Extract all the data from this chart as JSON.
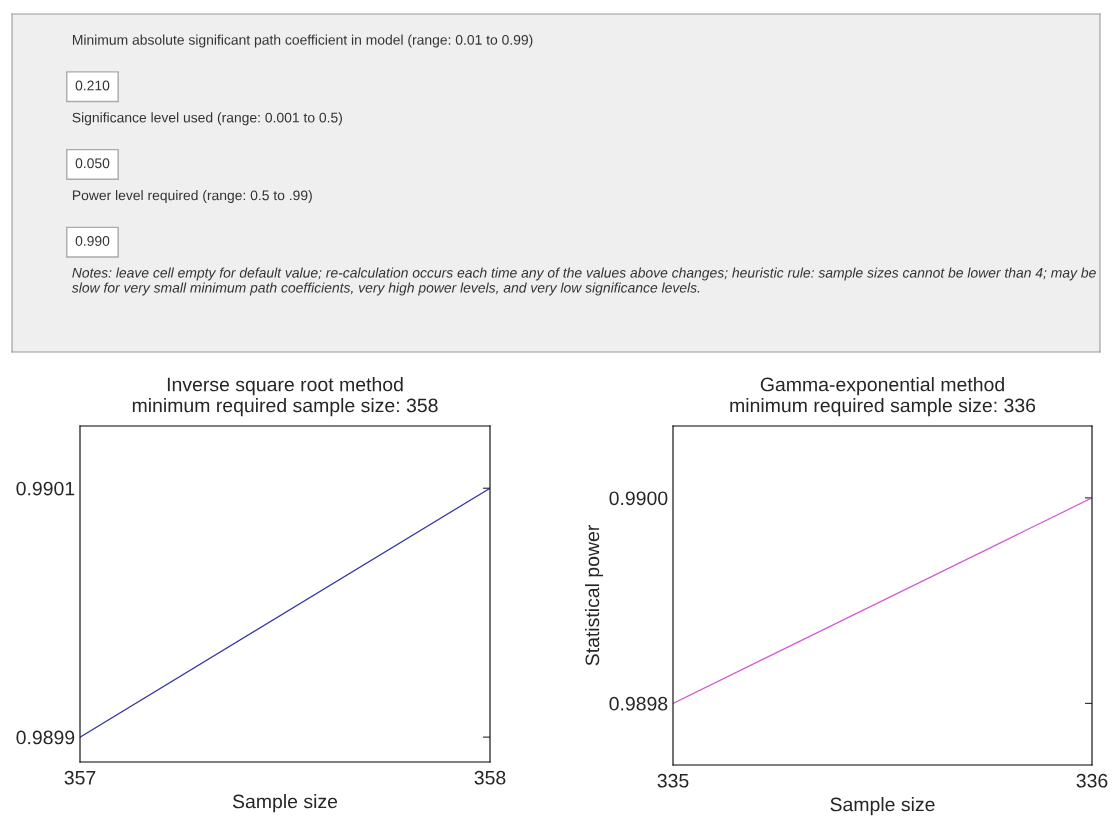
{
  "chart_data": [
    {
      "type": "other",
      "annotations": [
        "Minimum absolute significant path coefficient in model (range: 0.01 to 0.99)",
        "0.210",
        "Significance level used (range: 0.001 to 0.5)",
        "0.050",
        "Power level required (range: 0.5 to .99)",
        "0.990",
        "Notes: leave cell empty for default value; re-calculation occurs each time any of the values above changes; heuristic rule: sample sizes cannot be lower than 4; may be slow for very small minimum path coefficients, very high power levels, and very low significance levels."
      ]
    },
    {
      "type": "line",
      "title": "Inverse square root method\nminimum required sample size: 358",
      "xlabel": "Sample size",
      "x": [
        357,
        358
      ],
      "xlim": [
        357,
        358
      ],
      "xticks": [
        357,
        358
      ],
      "ylim": [
        0.98988,
        0.99015
      ],
      "yticks": [
        {
          "value": 0.9899,
          "label": "0.9899"
        },
        {
          "value": 0.9901,
          "label": "0.9901"
        }
      ],
      "grid": false,
      "series": [
        {
          "color": "#3535a5",
          "values": [
            0.9899,
            0.9901
          ]
        }
      ]
    },
    {
      "type": "line",
      "title": "Gamma-exponential method\nminimum required sample size: 336",
      "xlabel": "Sample size",
      "ylabel": "Statistical power",
      "x": [
        335,
        336
      ],
      "xlim": [
        335,
        336
      ],
      "xticks": [
        335,
        336
      ],
      "ylim": [
        0.98974,
        0.99007
      ],
      "yticks": [
        {
          "value": 0.9898,
          "label": "0.9898"
        },
        {
          "value": 0.99,
          "label": "0.9900"
        }
      ],
      "grid": false,
      "series": [
        {
          "color": "#d25ad2",
          "values": [
            0.9898,
            0.99
          ]
        }
      ]
    }
  ]
}
